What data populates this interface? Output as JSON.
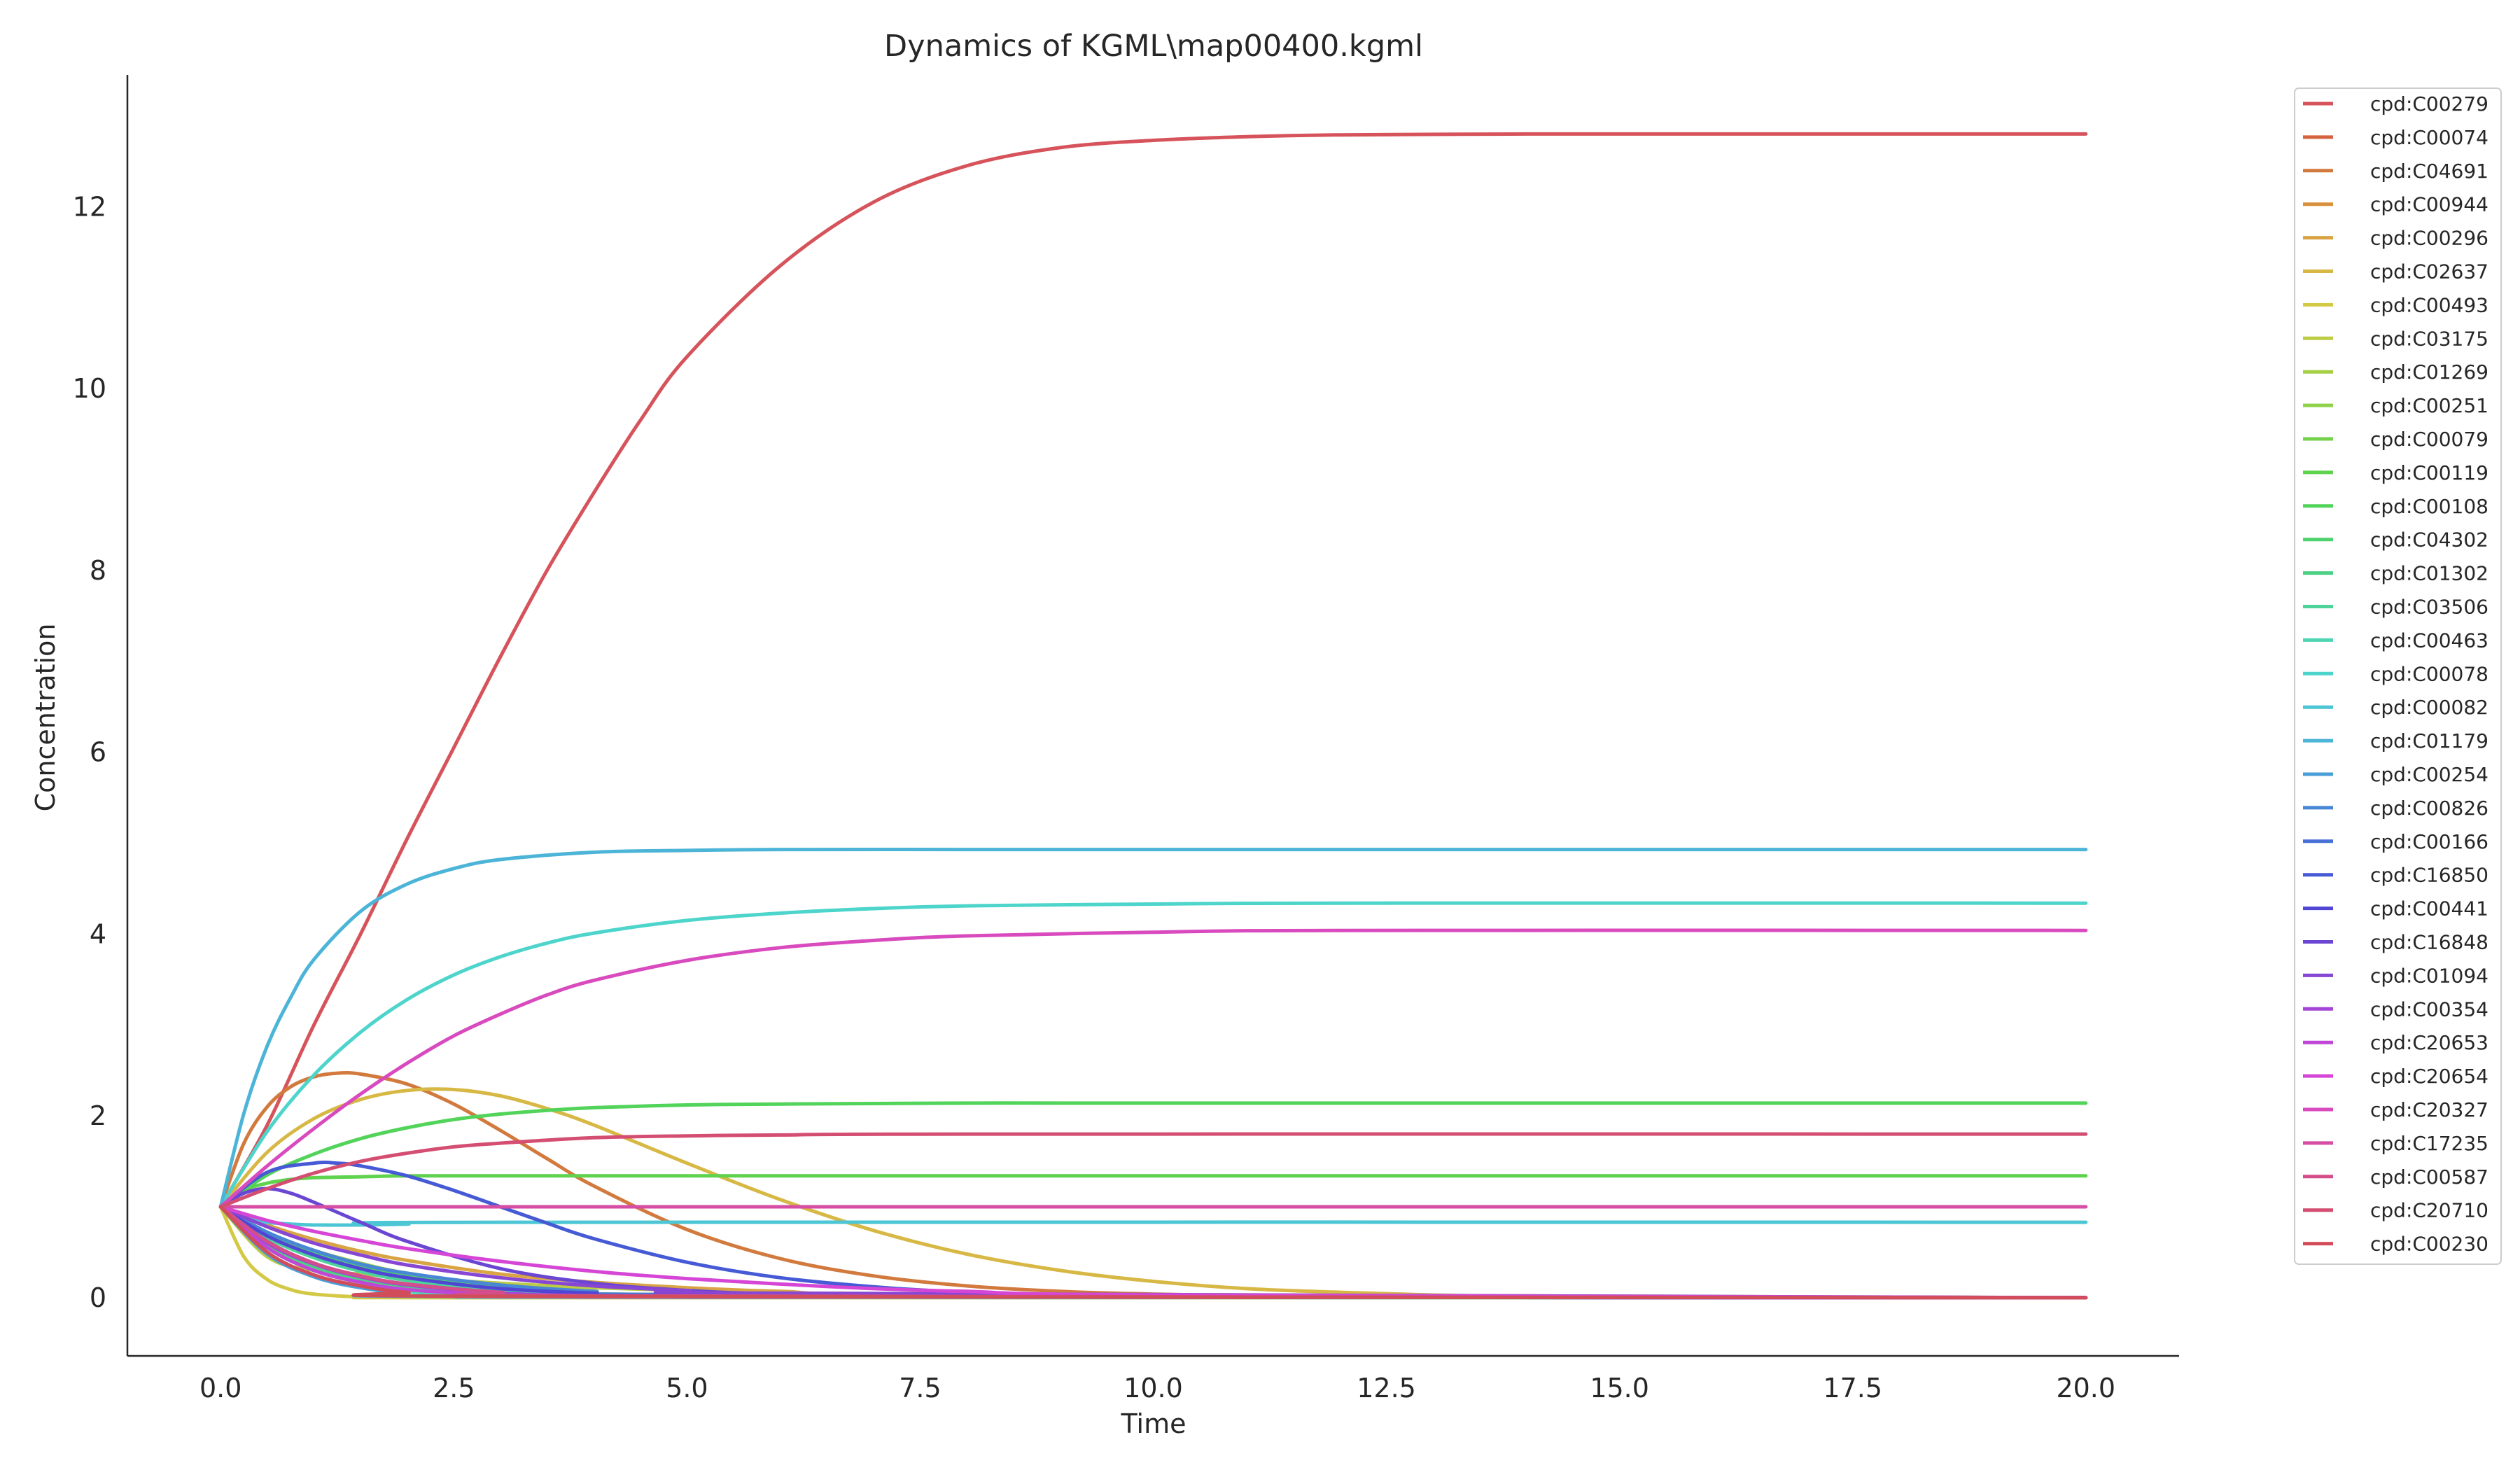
{
  "chart_data": {
    "type": "line",
    "title": "Dynamics of KGML\\map00400.kgml",
    "xlabel": "Time",
    "ylabel": "Concentration",
    "xlim": [
      -1.0,
      21.0
    ],
    "ylim": [
      -0.64,
      13.45
    ],
    "xticks": [
      0.0,
      2.5,
      5.0,
      7.5,
      10.0,
      12.5,
      15.0,
      17.5,
      20.0
    ],
    "xtick_labels": [
      "0.0",
      "2.5",
      "5.0",
      "7.5",
      "10.0",
      "12.5",
      "15.0",
      "17.5",
      "20.0"
    ],
    "yticks": [
      0,
      2,
      4,
      6,
      8,
      10,
      12
    ],
    "ytick_labels": [
      "0",
      "2",
      "4",
      "6",
      "8",
      "10",
      "12"
    ],
    "grid": false,
    "legend_position": "outside-right",
    "series": [
      {
        "name": "cpd:C00279",
        "color": "#d6535b",
        "x": [
          0,
          0.5,
          1,
          1.5,
          2,
          2.5,
          3,
          3.5,
          4,
          4.5,
          5,
          6,
          7,
          8,
          9,
          10,
          11,
          12,
          14,
          16,
          18,
          20
        ],
        "y": [
          1.0,
          1.9,
          3.0,
          4.0,
          5.05,
          6.05,
          7.05,
          8.0,
          8.85,
          9.65,
          10.35,
          11.35,
          12.05,
          12.45,
          12.65,
          12.73,
          12.77,
          12.79,
          12.8,
          12.8,
          12.8,
          12.8
        ]
      },
      {
        "name": "cpd:C00074",
        "color": "#d5633f",
        "x": [
          0,
          0.5,
          1,
          1.5,
          2,
          3,
          4,
          5,
          20
        ],
        "y": [
          1.0,
          0.62,
          0.36,
          0.2,
          0.11,
          0.04,
          0.015,
          0.005,
          0.0
        ]
      },
      {
        "name": "cpd:C04691",
        "color": "#d27a3e",
        "x": [
          0,
          0.25,
          0.5,
          0.75,
          1,
          1.25,
          1.5,
          2,
          2.5,
          3,
          3.5,
          4,
          5,
          6,
          7,
          8,
          9,
          10,
          11,
          12,
          13,
          14,
          16,
          20
        ],
        "y": [
          1.0,
          1.7,
          2.1,
          2.32,
          2.43,
          2.47,
          2.46,
          2.35,
          2.13,
          1.84,
          1.53,
          1.23,
          0.75,
          0.43,
          0.24,
          0.13,
          0.07,
          0.04,
          0.02,
          0.01,
          0.005,
          0.003,
          0.001,
          0.0
        ]
      },
      {
        "name": "cpd:C00944",
        "color": "#d9903d",
        "x": [
          0,
          0.5,
          1,
          1.5,
          2,
          2.5,
          3,
          4,
          5,
          20
        ],
        "y": [
          1.0,
          0.68,
          0.46,
          0.31,
          0.21,
          0.14,
          0.095,
          0.045,
          0.02,
          0.0
        ]
      },
      {
        "name": "cpd:C00296",
        "color": "#d9a444",
        "x": [
          0,
          0.5,
          1,
          1.5,
          2,
          3,
          4,
          5,
          6,
          8,
          20
        ],
        "y": [
          1.0,
          0.8,
          0.64,
          0.51,
          0.41,
          0.26,
          0.17,
          0.11,
          0.07,
          0.03,
          0.0
        ]
      },
      {
        "name": "cpd:C02637",
        "color": "#d7b845",
        "x": [
          0,
          0.5,
          1,
          1.5,
          2,
          2.5,
          3,
          3.5,
          4,
          5,
          6,
          7,
          8,
          9,
          10,
          11,
          12,
          13,
          14,
          16,
          20
        ],
        "y": [
          1.0,
          1.6,
          1.97,
          2.18,
          2.28,
          2.29,
          2.22,
          2.08,
          1.9,
          1.48,
          1.08,
          0.74,
          0.48,
          0.3,
          0.18,
          0.1,
          0.06,
          0.03,
          0.015,
          0.004,
          0.0
        ]
      },
      {
        "name": "cpd:C00493",
        "color": "#d3c944",
        "x": [
          0,
          0.25,
          0.5,
          0.75,
          1,
          1.5,
          2,
          3,
          20
        ],
        "y": [
          1.0,
          0.45,
          0.2,
          0.09,
          0.04,
          0.008,
          0.002,
          0.0,
          0.0
        ]
      },
      {
        "name": "cpd:C03175",
        "color": "#bdcc44",
        "x": [
          0,
          0.5,
          1,
          1.5,
          2,
          3,
          4,
          5,
          6,
          20
        ],
        "y": [
          1.0,
          0.45,
          0.3,
          0.26,
          0.22,
          0.16,
          0.11,
          0.08,
          0.05,
          0.0
        ]
      },
      {
        "name": "cpd:C01269",
        "color": "#a5d045",
        "x": [
          0,
          0.5,
          1,
          1.5,
          2,
          3,
          4,
          5,
          20
        ],
        "y": [
          1.0,
          0.72,
          0.52,
          0.38,
          0.27,
          0.14,
          0.07,
          0.035,
          0.0
        ]
      },
      {
        "name": "cpd:C00251",
        "color": "#8ed24a",
        "x": [
          0,
          0.5,
          1,
          1.5,
          2,
          3,
          4,
          20
        ],
        "y": [
          1.0,
          0.6,
          0.36,
          0.22,
          0.13,
          0.05,
          0.018,
          0.0
        ]
      },
      {
        "name": "cpd:C00079",
        "color": "#74d14c",
        "x": [
          0,
          0.5,
          1,
          1.5,
          2,
          3,
          4,
          20
        ],
        "y": [
          1.0,
          0.55,
          0.3,
          0.17,
          0.09,
          0.03,
          0.01,
          0.0
        ]
      },
      {
        "name": "cpd:C00119",
        "color": "#5fd24e",
        "x": [
          0,
          0.25,
          0.5,
          0.75,
          1,
          1.5,
          2,
          3,
          5,
          20
        ],
        "y": [
          1.0,
          1.18,
          1.26,
          1.3,
          1.32,
          1.33,
          1.34,
          1.34,
          1.34,
          1.34
        ]
      },
      {
        "name": "cpd:C00108",
        "color": "#52d35a",
        "x": [
          0,
          0.5,
          1,
          1.5,
          2,
          2.5,
          3,
          3.5,
          4,
          5,
          6,
          8,
          10,
          20
        ],
        "y": [
          1.0,
          1.35,
          1.58,
          1.75,
          1.87,
          1.96,
          2.02,
          2.06,
          2.09,
          2.12,
          2.13,
          2.14,
          2.14,
          2.14
        ]
      },
      {
        "name": "cpd:C04302",
        "color": "#4ed26d",
        "x": [
          0,
          0.5,
          1,
          1.5,
          2,
          3,
          4,
          5,
          20
        ],
        "y": [
          1.0,
          0.7,
          0.49,
          0.35,
          0.24,
          0.12,
          0.06,
          0.03,
          0.0
        ]
      },
      {
        "name": "cpd:C01302",
        "color": "#4ed084",
        "x": [
          0,
          0.5,
          1,
          1.5,
          2,
          3,
          4,
          20
        ],
        "y": [
          1.0,
          0.58,
          0.34,
          0.2,
          0.12,
          0.04,
          0.014,
          0.0
        ]
      },
      {
        "name": "cpd:C03506",
        "color": "#4ed39b",
        "x": [
          0,
          0.5,
          1,
          1.5,
          2,
          3,
          4,
          5,
          20
        ],
        "y": [
          1.0,
          0.66,
          0.44,
          0.29,
          0.19,
          0.08,
          0.035,
          0.015,
          0.0
        ]
      },
      {
        "name": "cpd:C00463",
        "color": "#4ed5b3",
        "x": [
          0,
          0.5,
          1,
          1.5,
          2,
          3,
          4,
          20
        ],
        "y": [
          1.0,
          0.5,
          0.25,
          0.13,
          0.065,
          0.016,
          0.004,
          0.0
        ]
      },
      {
        "name": "cpd:C00078",
        "color": "#4dd4cb",
        "x": [
          0,
          0.5,
          1,
          1.5,
          2,
          2.5,
          3,
          3.5,
          4,
          5,
          6,
          7,
          8,
          10,
          12,
          20
        ],
        "y": [
          1.0,
          1.83,
          2.45,
          2.92,
          3.28,
          3.55,
          3.75,
          3.9,
          4.01,
          4.15,
          4.23,
          4.28,
          4.31,
          4.33,
          4.34,
          4.34
        ]
      },
      {
        "name": "cpd:C00082",
        "color": "#4cc6d4",
        "x": [
          0,
          0.25,
          0.5,
          0.75,
          1,
          1.5,
          2,
          3,
          20
        ],
        "y": [
          1.0,
          0.88,
          0.83,
          0.81,
          0.8,
          0.8,
          0.81,
          0.83,
          0.83
        ]
      },
      {
        "name": "cpd:C01179",
        "color": "#4cb4d7",
        "x": [
          0,
          0.25,
          0.5,
          0.75,
          1,
          1.5,
          2,
          2.5,
          3,
          4,
          5,
          6,
          8,
          10,
          20
        ],
        "y": [
          1.0,
          2.03,
          2.77,
          3.3,
          3.72,
          4.25,
          4.55,
          4.72,
          4.82,
          4.9,
          4.92,
          4.93,
          4.93,
          4.93,
          4.93
        ]
      },
      {
        "name": "cpd:C00254",
        "color": "#4a9ed6",
        "x": [
          0,
          0.5,
          1,
          1.5,
          2,
          3,
          20
        ],
        "y": [
          1.0,
          0.48,
          0.23,
          0.11,
          0.05,
          0.012,
          0.0
        ]
      },
      {
        "name": "cpd:C00826",
        "color": "#4886d6",
        "x": [
          0,
          0.5,
          1,
          1.5,
          2,
          3,
          4,
          5,
          20
        ],
        "y": [
          1.0,
          0.72,
          0.52,
          0.37,
          0.27,
          0.14,
          0.07,
          0.035,
          0.0
        ]
      },
      {
        "name": "cpd:C00166",
        "color": "#4870d6",
        "x": [
          0,
          0.5,
          1,
          1.5,
          2,
          3,
          4,
          20
        ],
        "y": [
          1.0,
          0.62,
          0.38,
          0.24,
          0.15,
          0.06,
          0.022,
          0.0
        ]
      },
      {
        "name": "cpd:C16850",
        "color": "#465ad5",
        "x": [
          0,
          0.5,
          1,
          1.25,
          1.5,
          2,
          2.5,
          3,
          3.5,
          4,
          5,
          6,
          7,
          8,
          9,
          10,
          12,
          20
        ],
        "y": [
          1.0,
          1.38,
          1.48,
          1.48,
          1.45,
          1.34,
          1.18,
          1.0,
          0.82,
          0.65,
          0.39,
          0.22,
          0.12,
          0.06,
          0.03,
          0.015,
          0.004,
          0.0
        ]
      },
      {
        "name": "cpd:C00441",
        "color": "#5146d4",
        "x": [
          0,
          0.5,
          1,
          1.5,
          2,
          3,
          4,
          5,
          20
        ],
        "y": [
          1.0,
          0.68,
          0.47,
          0.32,
          0.22,
          0.1,
          0.05,
          0.022,
          0.0
        ]
      },
      {
        "name": "cpd:C16848",
        "color": "#6a46d3",
        "x": [
          0,
          0.25,
          0.5,
          0.75,
          1,
          1.5,
          2,
          3,
          4,
          5,
          6,
          8,
          20
        ],
        "y": [
          1.0,
          1.15,
          1.2,
          1.15,
          1.05,
          0.83,
          0.62,
          0.32,
          0.16,
          0.08,
          0.04,
          0.01,
          0.0
        ]
      },
      {
        "name": "cpd:C01094",
        "color": "#8746d3",
        "x": [
          0,
          0.5,
          1,
          1.5,
          2,
          3,
          4,
          5,
          6,
          20
        ],
        "y": [
          1.0,
          0.78,
          0.6,
          0.47,
          0.36,
          0.22,
          0.13,
          0.08,
          0.05,
          0.0
        ]
      },
      {
        "name": "cpd:C00354",
        "color": "#a346d6",
        "x": [
          0,
          0.5,
          1,
          1.5,
          2,
          3,
          4,
          5,
          20
        ],
        "y": [
          1.0,
          0.6,
          0.37,
          0.23,
          0.14,
          0.05,
          0.02,
          0.008,
          0.0
        ]
      },
      {
        "name": "cpd:C20653",
        "color": "#c046d7",
        "x": [
          0,
          0.5,
          1,
          1.5,
          2,
          3,
          4,
          20
        ],
        "y": [
          1.0,
          0.55,
          0.3,
          0.17,
          0.09,
          0.03,
          0.01,
          0.0
        ]
      },
      {
        "name": "cpd:C20654",
        "color": "#d646d6",
        "x": [
          0,
          0.5,
          1,
          1.5,
          2,
          3,
          4,
          5,
          6,
          7,
          8,
          10,
          20
        ],
        "y": [
          1.0,
          0.85,
          0.73,
          0.63,
          0.54,
          0.4,
          0.29,
          0.21,
          0.15,
          0.1,
          0.07,
          0.03,
          0.0
        ]
      },
      {
        "name": "cpd:C20327",
        "color": "#d84abe",
        "x": [
          0,
          0.5,
          1,
          1.5,
          2,
          2.5,
          3,
          3.5,
          4,
          5,
          6,
          7,
          8,
          10,
          12,
          20
        ],
        "y": [
          1.0,
          1.45,
          1.86,
          2.24,
          2.58,
          2.88,
          3.12,
          3.33,
          3.49,
          3.71,
          3.85,
          3.93,
          3.98,
          4.02,
          4.04,
          4.04
        ]
      },
      {
        "name": "cpd:C17235",
        "color": "#d64ea4",
        "x": [
          0,
          0.5,
          1,
          2,
          5,
          20
        ],
        "y": [
          1.0,
          1.0,
          1.0,
          1.0,
          1.0,
          1.0
        ]
      },
      {
        "name": "cpd:C00587",
        "color": "#d44e8c",
        "x": [
          0,
          0.5,
          1,
          1.5,
          2,
          3,
          4,
          20
        ],
        "y": [
          1.0,
          0.62,
          0.38,
          0.24,
          0.15,
          0.06,
          0.02,
          0.0
        ]
      },
      {
        "name": "cpd:C20710",
        "color": "#d44e72",
        "x": [
          0,
          0.5,
          1,
          1.5,
          2,
          2.5,
          3,
          4,
          5,
          6,
          8,
          20
        ],
        "y": [
          1.0,
          1.2,
          1.37,
          1.5,
          1.59,
          1.66,
          1.7,
          1.76,
          1.78,
          1.79,
          1.8,
          1.8
        ]
      },
      {
        "name": "cpd:C00230",
        "color": "#d24d5a",
        "x": [
          0,
          0.5,
          1,
          1.5,
          2,
          3,
          20
        ],
        "y": [
          1.0,
          0.5,
          0.25,
          0.13,
          0.06,
          0.015,
          0.0
        ]
      }
    ]
  }
}
